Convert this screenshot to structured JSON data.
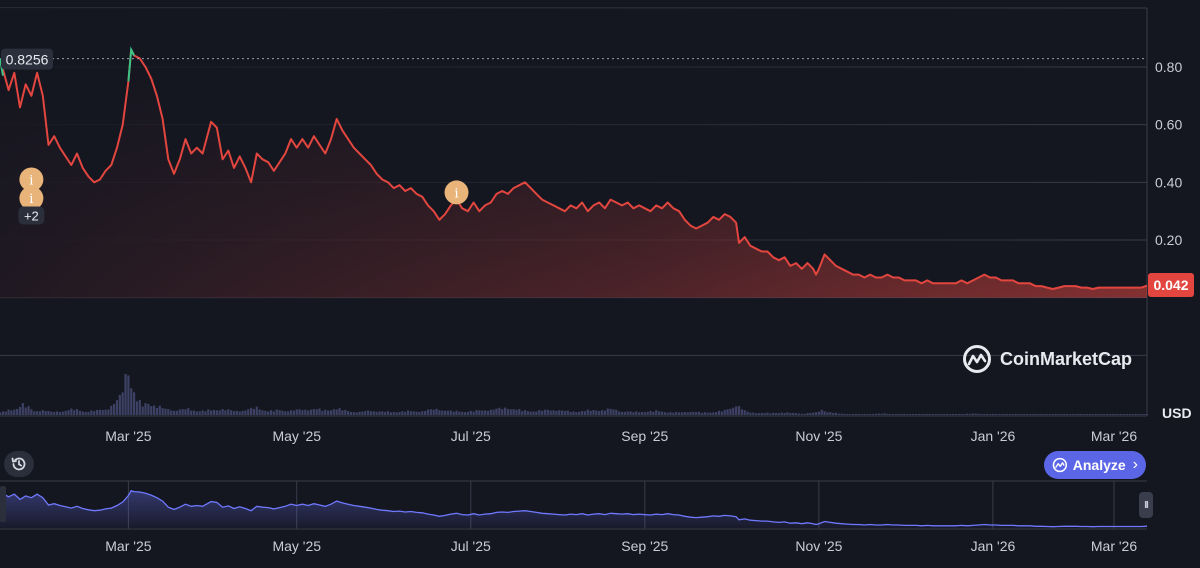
{
  "chart_data": {
    "type": "line",
    "title": "",
    "currency_label": "USD",
    "y_ticks": [
      "0.80",
      "0.60",
      "0.40",
      "0.20"
    ],
    "y_tick_values": [
      0.8,
      0.6,
      0.4,
      0.2
    ],
    "ylim": [
      -0.2,
      1.0
    ],
    "x_tick_labels": [
      "Mar '25",
      "May '25",
      "Jul '25",
      "Sep '25",
      "Nov '25",
      "Jan '26",
      "Mar '26"
    ],
    "x_range_days": [
      0,
      402
    ],
    "x_tick_days": [
      45,
      104,
      165,
      226,
      287,
      348,
      407
    ],
    "reference_label": "0.8256",
    "reference_value": 0.8256,
    "current_price_label": "0.042",
    "current_price": 0.042,
    "event_markers": [
      {
        "label": "i",
        "day": 11,
        "value": 0.41
      },
      {
        "label": "i",
        "day": 11,
        "value": 0.345
      },
      {
        "label": "+2",
        "day": 11,
        "value": 0.285
      },
      {
        "label": "i",
        "day": 160,
        "value": 0.365
      }
    ],
    "price_series": {
      "name": "Price",
      "keypoints": [
        [
          0,
          0.83
        ],
        [
          3,
          0.72
        ],
        [
          5,
          0.78
        ],
        [
          7,
          0.66
        ],
        [
          9,
          0.74
        ],
        [
          11,
          0.7
        ],
        [
          13,
          0.78
        ],
        [
          15,
          0.7
        ],
        [
          17,
          0.53
        ],
        [
          19,
          0.56
        ],
        [
          21,
          0.52
        ],
        [
          23,
          0.49
        ],
        [
          25,
          0.46
        ],
        [
          27,
          0.5
        ],
        [
          29,
          0.45
        ],
        [
          31,
          0.42
        ],
        [
          33,
          0.4
        ],
        [
          35,
          0.41
        ],
        [
          37,
          0.44
        ],
        [
          39,
          0.46
        ],
        [
          41,
          0.52
        ],
        [
          43,
          0.6
        ],
        [
          45,
          0.75
        ],
        [
          46,
          0.86
        ],
        [
          47,
          0.84
        ],
        [
          49,
          0.83
        ],
        [
          51,
          0.8
        ],
        [
          53,
          0.76
        ],
        [
          55,
          0.7
        ],
        [
          57,
          0.62
        ],
        [
          59,
          0.48
        ],
        [
          61,
          0.43
        ],
        [
          63,
          0.48
        ],
        [
          65,
          0.55
        ],
        [
          67,
          0.5
        ],
        [
          69,
          0.52
        ],
        [
          71,
          0.5
        ],
        [
          74,
          0.61
        ],
        [
          76,
          0.59
        ],
        [
          78,
          0.48
        ],
        [
          80,
          0.51
        ],
        [
          82,
          0.45
        ],
        [
          84,
          0.49
        ],
        [
          86,
          0.45
        ],
        [
          88,
          0.4
        ],
        [
          90,
          0.5
        ],
        [
          92,
          0.48
        ],
        [
          94,
          0.47
        ],
        [
          96,
          0.44
        ],
        [
          98,
          0.47
        ],
        [
          100,
          0.5
        ],
        [
          102,
          0.55
        ],
        [
          104,
          0.52
        ],
        [
          106,
          0.55
        ],
        [
          108,
          0.52
        ],
        [
          110,
          0.56
        ],
        [
          112,
          0.53
        ],
        [
          114,
          0.5
        ],
        [
          116,
          0.55
        ],
        [
          118,
          0.62
        ],
        [
          120,
          0.58
        ],
        [
          122,
          0.55
        ],
        [
          124,
          0.52
        ],
        [
          126,
          0.5
        ],
        [
          128,
          0.48
        ],
        [
          130,
          0.46
        ],
        [
          132,
          0.43
        ],
        [
          134,
          0.41
        ],
        [
          136,
          0.4
        ],
        [
          138,
          0.38
        ],
        [
          140,
          0.39
        ],
        [
          142,
          0.37
        ],
        [
          144,
          0.38
        ],
        [
          146,
          0.36
        ],
        [
          148,
          0.35
        ],
        [
          150,
          0.32
        ],
        [
          152,
          0.3
        ],
        [
          154,
          0.27
        ],
        [
          156,
          0.29
        ],
        [
          158,
          0.32
        ],
        [
          160,
          0.34
        ],
        [
          162,
          0.31
        ],
        [
          164,
          0.3
        ],
        [
          166,
          0.33
        ],
        [
          168,
          0.3
        ],
        [
          170,
          0.32
        ],
        [
          172,
          0.33
        ],
        [
          174,
          0.36
        ],
        [
          176,
          0.37
        ],
        [
          178,
          0.36
        ],
        [
          180,
          0.38
        ],
        [
          182,
          0.39
        ],
        [
          184,
          0.4
        ],
        [
          186,
          0.38
        ],
        [
          188,
          0.36
        ],
        [
          190,
          0.34
        ],
        [
          192,
          0.33
        ],
        [
          194,
          0.32
        ],
        [
          196,
          0.31
        ],
        [
          198,
          0.3
        ],
        [
          200,
          0.32
        ],
        [
          202,
          0.31
        ],
        [
          204,
          0.33
        ],
        [
          206,
          0.3
        ],
        [
          208,
          0.32
        ],
        [
          210,
          0.33
        ],
        [
          212,
          0.31
        ],
        [
          214,
          0.34
        ],
        [
          216,
          0.33
        ],
        [
          218,
          0.32
        ],
        [
          220,
          0.33
        ],
        [
          222,
          0.31
        ],
        [
          224,
          0.32
        ],
        [
          226,
          0.31
        ],
        [
          228,
          0.3
        ],
        [
          230,
          0.32
        ],
        [
          232,
          0.31
        ],
        [
          234,
          0.33
        ],
        [
          236,
          0.31
        ],
        [
          238,
          0.3
        ],
        [
          240,
          0.27
        ],
        [
          242,
          0.25
        ],
        [
          244,
          0.24
        ],
        [
          246,
          0.25
        ],
        [
          248,
          0.26
        ],
        [
          250,
          0.28
        ],
        [
          252,
          0.27
        ],
        [
          254,
          0.29
        ],
        [
          256,
          0.28
        ],
        [
          258,
          0.26
        ],
        [
          259,
          0.19
        ],
        [
          261,
          0.21
        ],
        [
          263,
          0.18
        ],
        [
          265,
          0.17
        ],
        [
          267,
          0.16
        ],
        [
          269,
          0.16
        ],
        [
          271,
          0.14
        ],
        [
          273,
          0.13
        ],
        [
          275,
          0.14
        ],
        [
          277,
          0.11
        ],
        [
          279,
          0.12
        ],
        [
          281,
          0.1
        ],
        [
          283,
          0.12
        ],
        [
          285,
          0.1
        ],
        [
          286,
          0.08
        ],
        [
          287,
          0.1
        ],
        [
          289,
          0.15
        ],
        [
          291,
          0.13
        ],
        [
          293,
          0.11
        ],
        [
          295,
          0.1
        ],
        [
          297,
          0.09
        ],
        [
          299,
          0.08
        ],
        [
          301,
          0.08
        ],
        [
          303,
          0.07
        ],
        [
          305,
          0.08
        ],
        [
          307,
          0.07
        ],
        [
          309,
          0.07
        ],
        [
          311,
          0.08
        ],
        [
          313,
          0.07
        ],
        [
          315,
          0.07
        ],
        [
          317,
          0.06
        ],
        [
          319,
          0.06
        ],
        [
          321,
          0.06
        ],
        [
          323,
          0.05
        ],
        [
          325,
          0.06
        ],
        [
          327,
          0.05
        ],
        [
          329,
          0.05
        ],
        [
          331,
          0.05
        ],
        [
          333,
          0.05
        ],
        [
          335,
          0.05
        ],
        [
          337,
          0.06
        ],
        [
          339,
          0.05
        ],
        [
          341,
          0.06
        ],
        [
          343,
          0.07
        ],
        [
          345,
          0.08
        ],
        [
          347,
          0.07
        ],
        [
          349,
          0.07
        ],
        [
          351,
          0.06
        ],
        [
          353,
          0.06
        ],
        [
          355,
          0.06
        ],
        [
          357,
          0.05
        ],
        [
          359,
          0.05
        ],
        [
          361,
          0.05
        ],
        [
          363,
          0.04
        ],
        [
          365,
          0.04
        ],
        [
          367,
          0.035
        ],
        [
          369,
          0.03
        ],
        [
          371,
          0.035
        ],
        [
          373,
          0.04
        ],
        [
          375,
          0.04
        ],
        [
          377,
          0.04
        ],
        [
          379,
          0.035
        ],
        [
          381,
          0.035
        ],
        [
          383,
          0.03
        ],
        [
          385,
          0.035
        ],
        [
          387,
          0.035
        ],
        [
          389,
          0.035
        ],
        [
          391,
          0.035
        ],
        [
          393,
          0.035
        ],
        [
          395,
          0.035
        ],
        [
          397,
          0.035
        ],
        [
          400,
          0.035
        ],
        [
          402,
          0.042
        ]
      ]
    },
    "volume_series": {
      "name": "Volume",
      "relative_values": [
        [
          0,
          0.05
        ],
        [
          5,
          0.12
        ],
        [
          8,
          0.22
        ],
        [
          10,
          0.15
        ],
        [
          12,
          0.08
        ],
        [
          15,
          0.1
        ],
        [
          18,
          0.06
        ],
        [
          22,
          0.08
        ],
        [
          26,
          0.12
        ],
        [
          30,
          0.07
        ],
        [
          34,
          0.09
        ],
        [
          38,
          0.14
        ],
        [
          40,
          0.22
        ],
        [
          42,
          0.35
        ],
        [
          43,
          0.55
        ],
        [
          44,
          0.85
        ],
        [
          45,
          1.0
        ],
        [
          46,
          0.6
        ],
        [
          47,
          0.45
        ],
        [
          48,
          0.3
        ],
        [
          50,
          0.2
        ],
        [
          52,
          0.25
        ],
        [
          55,
          0.18
        ],
        [
          58,
          0.12
        ],
        [
          62,
          0.1
        ],
        [
          66,
          0.12
        ],
        [
          70,
          0.08
        ],
        [
          74,
          0.1
        ],
        [
          78,
          0.12
        ],
        [
          82,
          0.08
        ],
        [
          86,
          0.1
        ],
        [
          90,
          0.15
        ],
        [
          94,
          0.08
        ],
        [
          98,
          0.1
        ],
        [
          102,
          0.09
        ],
        [
          106,
          0.11
        ],
        [
          110,
          0.12
        ],
        [
          114,
          0.1
        ],
        [
          118,
          0.13
        ],
        [
          122,
          0.08
        ],
        [
          126,
          0.06
        ],
        [
          130,
          0.09
        ],
        [
          134,
          0.07
        ],
        [
          138,
          0.06
        ],
        [
          142,
          0.08
        ],
        [
          146,
          0.07
        ],
        [
          150,
          0.1
        ],
        [
          154,
          0.12
        ],
        [
          158,
          0.08
        ],
        [
          162,
          0.07
        ],
        [
          166,
          0.08
        ],
        [
          170,
          0.1
        ],
        [
          174,
          0.12
        ],
        [
          178,
          0.15
        ],
        [
          182,
          0.1
        ],
        [
          186,
          0.08
        ],
        [
          190,
          0.09
        ],
        [
          194,
          0.11
        ],
        [
          198,
          0.08
        ],
        [
          202,
          0.07
        ],
        [
          206,
          0.09
        ],
        [
          210,
          0.1
        ],
        [
          214,
          0.12
        ],
        [
          218,
          0.08
        ],
        [
          222,
          0.06
        ],
        [
          226,
          0.07
        ],
        [
          230,
          0.08
        ],
        [
          234,
          0.06
        ],
        [
          238,
          0.05
        ],
        [
          242,
          0.07
        ],
        [
          246,
          0.05
        ],
        [
          250,
          0.06
        ],
        [
          254,
          0.09
        ],
        [
          256,
          0.14
        ],
        [
          258,
          0.22
        ],
        [
          260,
          0.12
        ],
        [
          262,
          0.06
        ],
        [
          266,
          0.04
        ],
        [
          270,
          0.04
        ],
        [
          274,
          0.05
        ],
        [
          278,
          0.04
        ],
        [
          282,
          0.03
        ],
        [
          286,
          0.05
        ],
        [
          288,
          0.12
        ],
        [
          290,
          0.06
        ],
        [
          294,
          0.03
        ],
        [
          298,
          0.02
        ],
        [
          302,
          0.02
        ],
        [
          306,
          0.02
        ],
        [
          310,
          0.03
        ],
        [
          314,
          0.02
        ],
        [
          318,
          0.02
        ],
        [
          322,
          0.02
        ],
        [
          326,
          0.02
        ],
        [
          330,
          0.02
        ],
        [
          334,
          0.02
        ],
        [
          338,
          0.02
        ],
        [
          342,
          0.03
        ],
        [
          346,
          0.02
        ],
        [
          350,
          0.02
        ],
        [
          354,
          0.02
        ],
        [
          358,
          0.02
        ],
        [
          362,
          0.02
        ],
        [
          366,
          0.01
        ],
        [
          370,
          0.02
        ],
        [
          374,
          0.01
        ],
        [
          378,
          0.02
        ],
        [
          382,
          0.01
        ],
        [
          386,
          0.01
        ],
        [
          390,
          0.01
        ],
        [
          394,
          0.01
        ],
        [
          398,
          0.01
        ],
        [
          402,
          0.01
        ]
      ]
    }
  },
  "ui": {
    "brand_name": "CoinMarketCap",
    "analyze_label": "Analyze",
    "pause_label": "II",
    "colors": {
      "background": "#141620",
      "line_down": "#e2463f",
      "line_up": "#3cc487",
      "grid": "#3a3d4a",
      "navigator": "#6f79ff",
      "volume": "#3d4264",
      "price_tag": "#e2463f",
      "marker": "#e9b47a"
    }
  }
}
